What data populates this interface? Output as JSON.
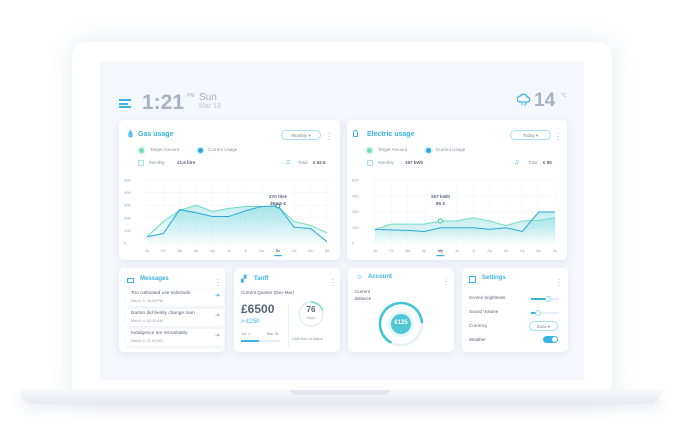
{
  "header": {
    "time": "1:21",
    "ampm": "PM",
    "day": "Sun",
    "date": "Mar 13",
    "temperature": "14",
    "temp_unit": "°C",
    "weather_icon": "cloud-snow-icon"
  },
  "gas": {
    "title": "Gas usage",
    "period": "Monthly",
    "legend": [
      "Target Amount",
      "Current Usage"
    ],
    "monthly_label": "Monthly",
    "monthly_value": "41.6 litre",
    "total_label": "Total",
    "total_value": "€ 62.5",
    "tooltip": [
      "270 litre",
      "364.5 €"
    ]
  },
  "electric": {
    "title": "Electric usage",
    "period": "Today",
    "legend": [
      "Target Amount",
      "Current Usage"
    ],
    "monthly_label": "Monthly",
    "monthly_value": "157 kWh",
    "total_label": "Total",
    "total_value": "€ 95",
    "tooltip": [
      "157 kWh",
      "95 €"
    ]
  },
  "messages": {
    "title": "Messages",
    "items": [
      {
        "text": "Too cultivated use solicitude",
        "date": "March 5, 08:05 PM"
      },
      {
        "text": "Barton did feebly change man",
        "date": "March 4, 02:30 AM"
      },
      {
        "text": "Indulgence ten remarkably",
        "date": "March 2, 11:20 AM"
      }
    ]
  },
  "tariff": {
    "title": "Tariff",
    "subtitle": "Current Quarter (Dec-Mar)",
    "amount": "£6500",
    "delta": "> £250",
    "start": "Jan 1",
    "end": "Mar 31",
    "days": "76",
    "days_unit": "days",
    "days_caption": "Until End of March",
    "progress": 0.45,
    "days_fraction": 0.2
  },
  "account": {
    "title": "Account",
    "label_line1": "Current",
    "label_line2": "Balance",
    "balance": "€125",
    "gauge_fraction": 0.65
  },
  "settings": {
    "title": "Settings",
    "brightness_label": "Screen brightness",
    "brightness": 0.6,
    "volume_label": "Sound Volume",
    "volume": 0.25,
    "currency_label": "Currency",
    "currency": "Euro",
    "weather_label": "Weather",
    "weather_on": true
  },
  "colors": {
    "accent": "#39b3e3",
    "target": "#6fdcc0",
    "current": "#2aa8d8"
  },
  "chart_data": [
    {
      "type": "area",
      "title": "Gas usage",
      "categories": [
        "Ja",
        "Fe",
        "Ma",
        "Ap",
        "My",
        "Ju",
        "Jl",
        "Au",
        "Se",
        "Oc",
        "No",
        "De"
      ],
      "ylim": [
        0,
        500
      ],
      "yticks": [
        0,
        100,
        200,
        300,
        400,
        500
      ],
      "highlight": "Se",
      "series": [
        {
          "name": "Target Amount",
          "values": [
            50,
            170,
            260,
            300,
            250,
            275,
            290,
            290,
            290,
            170,
            140,
            80
          ]
        },
        {
          "name": "Current Usage",
          "values": [
            50,
            75,
            265,
            240,
            210,
            210,
            255,
            290,
            295,
            125,
            115,
            10
          ]
        }
      ]
    },
    {
      "type": "area",
      "title": "Electric usage",
      "categories": [
        "Ja",
        "Fe",
        "Ma",
        "Ap",
        "My",
        "Ju",
        "Jl",
        "Au",
        "Se",
        "Oc",
        "No",
        "De"
      ],
      "ylim": [
        0,
        600
      ],
      "yticks": [
        0,
        150,
        300,
        450,
        600
      ],
      "highlight": "My",
      "series": [
        {
          "name": "Target Amount",
          "values": [
            130,
            180,
            180,
            180,
            210,
            210,
            240,
            210,
            165,
            210,
            215,
            240
          ]
        },
        {
          "name": "Current Usage",
          "values": [
            130,
            125,
            120,
            110,
            145,
            145,
            145,
            130,
            145,
            110,
            295,
            295
          ]
        }
      ]
    }
  ]
}
